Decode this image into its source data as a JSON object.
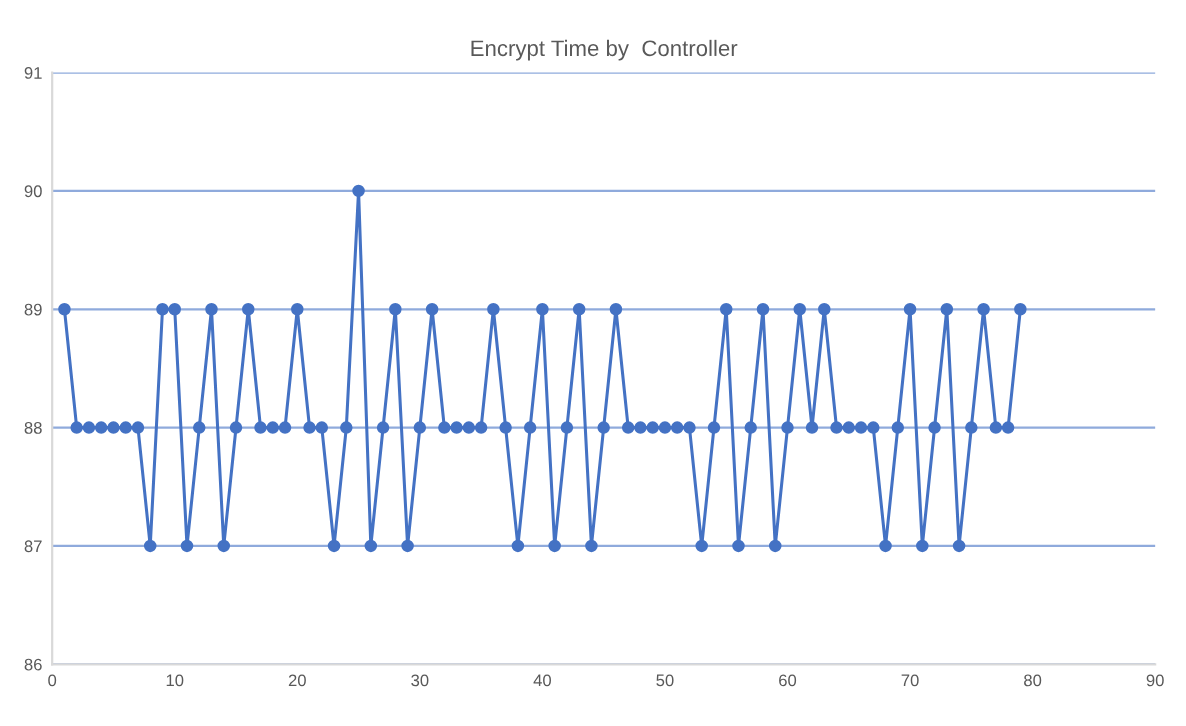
{
  "chart_data": {
    "type": "line",
    "title": "Encrypt Time by  Controller",
    "x": [
      1,
      2,
      3,
      4,
      5,
      6,
      7,
      8,
      9,
      10,
      11,
      12,
      13,
      14,
      15,
      16,
      17,
      18,
      19,
      20,
      21,
      22,
      23,
      24,
      25,
      26,
      27,
      28,
      29,
      30,
      31,
      32,
      33,
      34,
      35,
      36,
      37,
      38,
      39,
      40,
      41,
      42,
      43,
      44,
      45,
      46,
      47,
      48,
      49,
      50,
      51,
      52,
      53,
      54,
      55,
      56,
      57,
      58,
      59,
      60,
      61,
      62,
      63,
      64,
      65,
      66,
      67,
      68,
      69,
      70,
      71,
      72,
      73,
      74,
      75,
      76,
      77,
      78,
      79
    ],
    "series": [
      {
        "color": "#4472c4",
        "values": [
          89,
          88,
          88,
          88,
          88,
          88,
          88,
          87,
          89,
          89,
          87,
          88,
          89,
          87,
          88,
          89,
          88,
          88,
          88,
          89,
          88,
          88,
          87,
          88,
          90,
          87,
          88,
          89,
          87,
          88,
          89,
          88,
          88,
          88,
          88,
          89,
          88,
          87,
          88,
          89,
          87,
          88,
          89,
          87,
          88,
          89,
          88,
          88,
          88,
          88,
          88,
          88,
          87,
          88,
          89,
          87,
          88,
          89,
          87,
          88,
          89,
          88,
          89,
          88,
          88,
          88,
          88,
          87,
          88,
          89,
          87,
          88,
          89,
          87,
          88,
          89,
          88,
          88,
          89
        ]
      }
    ],
    "xlim": [
      0,
      90
    ],
    "xticks": [
      0,
      10,
      20,
      30,
      40,
      50,
      60,
      70,
      80,
      90
    ],
    "ylim": [
      86,
      91
    ],
    "yticks": [
      86,
      87,
      88,
      89,
      90,
      91
    ],
    "grid": "y",
    "marker": "circle",
    "line_style": "solid"
  }
}
